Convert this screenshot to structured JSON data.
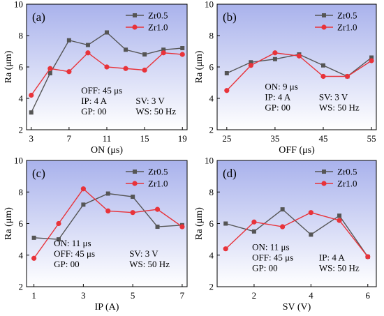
{
  "figure": {
    "ylabel": "Ra (μm)"
  },
  "legend": [
    "Zr0.5",
    "Zr1.0"
  ],
  "colors": {
    "Zr0.5": "#555555",
    "Zr1.0": "#e8333a",
    "bg_top": "#a9b2ec",
    "bg_bottom": "#ffffff"
  },
  "chart_data": [
    {
      "type": "line",
      "label": "(a)",
      "xlabel": "ON (μs)",
      "ylabel": "Ra (μm)",
      "xlim": [
        2.5,
        19.5
      ],
      "ylim": [
        2,
        10
      ],
      "xticks": [
        3,
        7,
        11,
        15,
        19
      ],
      "yticks": [
        2,
        4,
        6,
        8,
        10
      ],
      "x": [
        3,
        5,
        7,
        9,
        11,
        13,
        15,
        17,
        19
      ],
      "series": [
        {
          "name": "Zr0.5",
          "values": [
            3.1,
            5.6,
            7.7,
            7.4,
            8.2,
            7.1,
            6.8,
            7.1,
            7.2
          ]
        },
        {
          "name": "Zr1.0",
          "values": [
            4.2,
            5.9,
            5.7,
            6.9,
            6.0,
            5.9,
            5.8,
            6.9,
            6.8
          ]
        }
      ],
      "annotations": [
        "OFF: 45 μs",
        "IP: 4 A",
        "SV: 3 V",
        "GP: 00",
        "WS: 50 Hz"
      ],
      "legend_position": "top-right",
      "annotation_position": "bottom-right"
    },
    {
      "type": "line",
      "label": "(b)",
      "xlabel": "OFF (μs)",
      "ylabel": "Ra (μm)",
      "xlim": [
        23,
        56
      ],
      "ylim": [
        2,
        10
      ],
      "xticks": [
        25,
        35,
        45,
        55
      ],
      "yticks": [
        2,
        4,
        6,
        8,
        10
      ],
      "x": [
        25,
        30,
        35,
        40,
        45,
        50,
        55
      ],
      "series": [
        {
          "name": "Zr0.5",
          "values": [
            5.6,
            6.3,
            6.5,
            6.8,
            6.1,
            5.4,
            6.6
          ]
        },
        {
          "name": "Zr1.0",
          "values": [
            4.5,
            6.1,
            6.9,
            6.7,
            5.4,
            5.4,
            6.4
          ]
        }
      ],
      "annotations": [
        "ON: 9 μs",
        "IP: 4 A",
        "SV: 3 V",
        "GP: 00",
        "WS: 50 Hz"
      ],
      "legend_position": "top-right",
      "annotation_position": "bottom-center"
    },
    {
      "type": "line",
      "label": "(c)",
      "xlabel": "IP (A)",
      "ylabel": "Ra (μm)",
      "xlim": [
        0.7,
        7.2
      ],
      "ylim": [
        2,
        10
      ],
      "xticks": [
        1,
        3,
        5,
        7
      ],
      "yticks": [
        2,
        4,
        6,
        8,
        10
      ],
      "x": [
        1,
        2,
        3,
        4,
        5,
        6,
        7
      ],
      "series": [
        {
          "name": "Zr0.5",
          "values": [
            5.1,
            5.0,
            7.2,
            7.9,
            7.7,
            5.8,
            5.9
          ]
        },
        {
          "name": "Zr1.0",
          "values": [
            3.8,
            6.0,
            8.2,
            6.8,
            6.7,
            6.9,
            5.8
          ]
        }
      ],
      "annotations": [
        "ON: 11 μs",
        "OFF: 45 μs",
        "SV: 3 V",
        "GP: 00",
        "WS: 50 Hz"
      ],
      "legend_position": "top-right",
      "annotation_position": "bottom-center"
    },
    {
      "type": "line",
      "label": "(d)",
      "xlabel": "SV (V)",
      "ylabel": "Ra (μm)",
      "xlim": [
        0.7,
        6.3
      ],
      "ylim": [
        2,
        10
      ],
      "xticks": [
        2,
        4,
        6
      ],
      "yticks": [
        2,
        4,
        6,
        8,
        10
      ],
      "x": [
        1,
        2,
        3,
        4,
        5,
        6
      ],
      "series": [
        {
          "name": "Zr0.5",
          "values": [
            6.0,
            5.5,
            6.9,
            5.3,
            6.5,
            3.9
          ]
        },
        {
          "name": "Zr1.0",
          "values": [
            4.4,
            6.1,
            5.8,
            6.7,
            6.2,
            3.9
          ]
        }
      ],
      "annotations": [
        "ON: 11 μs",
        "OFF: 45 μs",
        "IP: 4 A",
        "GP: 00",
        "WS: 50 Hz"
      ],
      "legend_position": "top-right",
      "annotation_position": "bottom-center"
    }
  ]
}
